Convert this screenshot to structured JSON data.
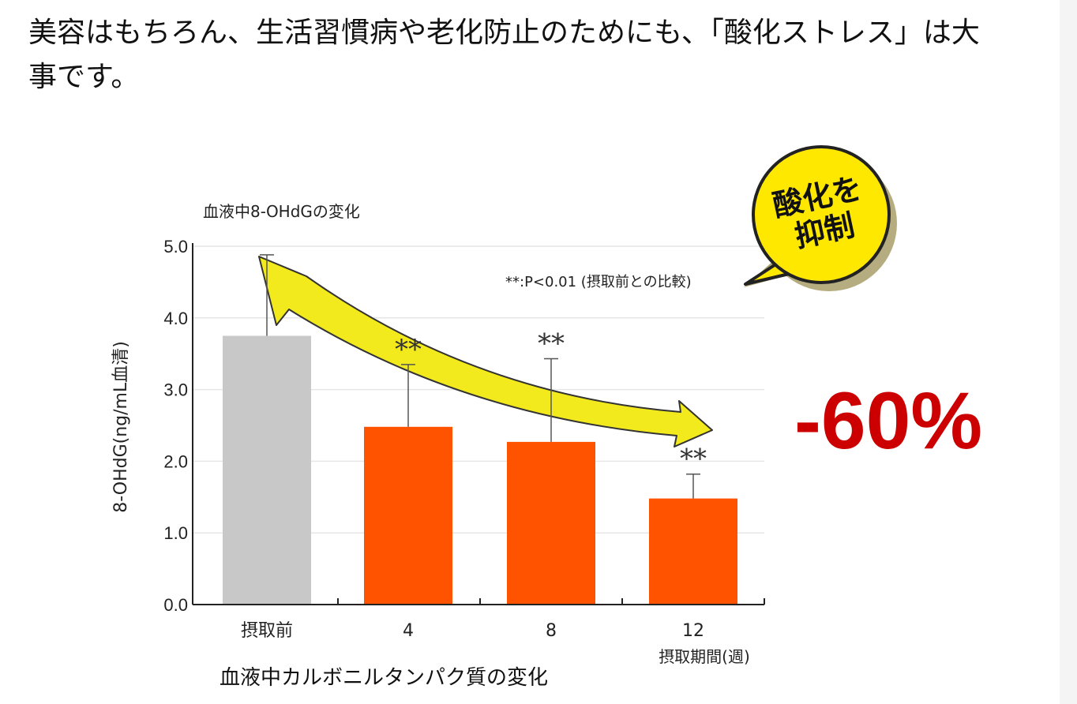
{
  "page": {
    "heading": "美容はもちろん、生活習慣病や老化防止のためにも、「酸化ストレス」は大事です。",
    "caption_below": "血液中カルボニルタンパク質の変化"
  },
  "chart_data": {
    "type": "bar",
    "title": "血液中8-OHdGの変化",
    "ylabel": "8-OHdG(ng/mL血清)",
    "xlabel": "摂取期間(週)",
    "ylim": [
      0,
      5
    ],
    "yticks": [
      "0.0",
      "1.0",
      "2.0",
      "3.0",
      "4.0",
      "5.0"
    ],
    "categories": [
      "摂取前",
      "4",
      "8",
      "12"
    ],
    "values": [
      3.75,
      2.48,
      2.27,
      1.48
    ],
    "error_upper": [
      4.88,
      3.35,
      3.43,
      1.82
    ],
    "significance": [
      "",
      "**",
      "**",
      "**"
    ],
    "bar_colors": [
      "#c8c8c8",
      "#ff5300",
      "#ff5300",
      "#ff5300"
    ],
    "grid": true,
    "annotation": "**:P<0.01 (摂取前との比較)",
    "callout": {
      "lines": [
        "酸化を",
        "抑制"
      ],
      "color": "#ffe800"
    },
    "arrow_color": "#f2ea1c",
    "highlight": {
      "text": "-60%",
      "color": "#cc0000"
    }
  }
}
